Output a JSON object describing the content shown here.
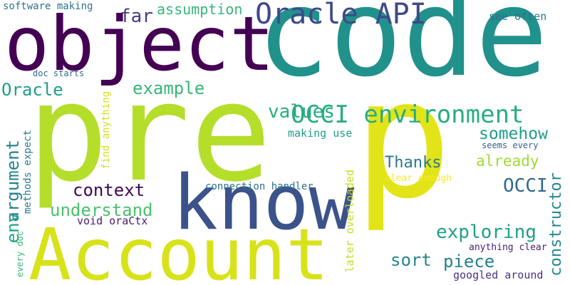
{
  "words": [
    {
      "text": "code",
      "color": "#21918c"
    },
    {
      "text": "pre",
      "color": "#b5de2b"
    },
    {
      "text": "object",
      "color": "#440154"
    },
    {
      "text": "p",
      "color": "#e2e418"
    },
    {
      "text": "know",
      "color": "#3b528b"
    },
    {
      "text": "Account",
      "color": "#d8e219"
    },
    {
      "text": "Oracle API",
      "color": "#3e4989"
    },
    {
      "text": "OCCI environment",
      "color": "#28ae80"
    },
    {
      "text": "assumption",
      "color": "#35b779"
    },
    {
      "text": "far",
      "color": "#433e85"
    },
    {
      "text": "software making",
      "color": "#2c728e"
    },
    {
      "text": "see often",
      "color": "#2c728e"
    },
    {
      "text": "doc starts",
      "color": "#31688e"
    },
    {
      "text": "Oracle",
      "color": "#1f9e89"
    },
    {
      "text": "example",
      "color": "#35b779"
    },
    {
      "text": "values",
      "color": "#26ad81"
    },
    {
      "text": "somehow",
      "color": "#1f9e89"
    },
    {
      "text": "seems every",
      "color": "#355f8d"
    },
    {
      "text": "argument",
      "color": "#25848e"
    },
    {
      "text": "making use",
      "color": "#1f9e89"
    },
    {
      "text": "Thanks",
      "color": "#2a788e"
    },
    {
      "text": "already",
      "color": "#a0da39"
    },
    {
      "text": "clear enough",
      "color": "#fde725"
    },
    {
      "text": "methods expect",
      "color": "#2a788e"
    },
    {
      "text": "find anything",
      "color": "#d2e21b"
    },
    {
      "text": "context",
      "color": "#3e0751"
    },
    {
      "text": "OCCI",
      "color": "#31688e"
    },
    {
      "text": "connection handler",
      "color": "#2c728e"
    },
    {
      "text": "understand",
      "color": "#4ac16d"
    },
    {
      "text": "later overloaded",
      "color": "#c2df23"
    },
    {
      "text": "env",
      "color": "#20a386"
    },
    {
      "text": "void oraCtx",
      "color": "#482071"
    },
    {
      "text": "exploring",
      "color": "#1fa088"
    },
    {
      "text": "constructor",
      "color": "#23898e"
    },
    {
      "text": "every doc",
      "color": "#35b779"
    },
    {
      "text": "sort",
      "color": "#25848e"
    },
    {
      "text": "piece",
      "color": "#277f8e"
    },
    {
      "text": "anything clear",
      "color": "#482475"
    },
    {
      "text": "googled around",
      "color": "#46337e"
    }
  ]
}
